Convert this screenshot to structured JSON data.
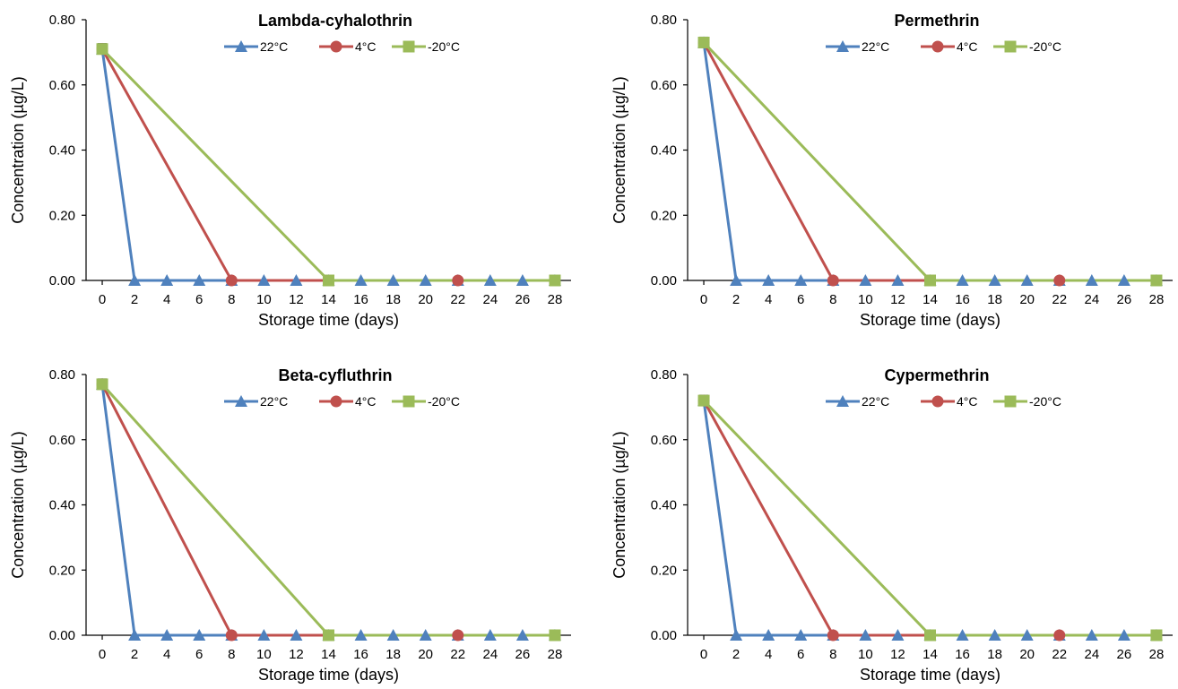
{
  "figure": {
    "background": "#ffffff"
  },
  "series_styles": [
    {
      "name": "22°C",
      "color": "#4f81bd",
      "marker": "triangle"
    },
    {
      "name": "4°C",
      "color": "#c0504d",
      "marker": "circle"
    },
    {
      "name": "-20°C",
      "color": "#9bbb59",
      "marker": "square"
    }
  ],
  "chart_data": [
    {
      "type": "line",
      "title": "Lambda-cyhalothrin",
      "xlabel": "Storage time (days)",
      "ylabel": "Concentration (µg/L)",
      "x_ticks": [
        0,
        2,
        4,
        6,
        8,
        10,
        12,
        14,
        16,
        18,
        20,
        22,
        24,
        26,
        28
      ],
      "y_ticks": [
        "0.00",
        "0.20",
        "0.40",
        "0.60",
        "0.80"
      ],
      "xlim": [
        -1,
        29
      ],
      "ylim": [
        0,
        0.8
      ],
      "grid": false,
      "legend": "top",
      "series": [
        {
          "name": "22°C",
          "x": [
            0,
            2,
            4,
            6,
            8,
            10,
            12,
            14,
            16,
            18,
            20,
            22,
            24,
            26,
            28
          ],
          "y": [
            0.71,
            0,
            0,
            0,
            0,
            0,
            0,
            0,
            0,
            0,
            0,
            0,
            0,
            0,
            0
          ]
        },
        {
          "name": "4°C",
          "x": [
            0,
            8,
            22
          ],
          "y": [
            0.71,
            0,
            0
          ]
        },
        {
          "name": "-20°C",
          "x": [
            0,
            14,
            28
          ],
          "y": [
            0.71,
            0,
            0
          ]
        }
      ]
    },
    {
      "type": "line",
      "title": "Permethrin",
      "xlabel": "Storage time (days)",
      "ylabel": "Concentration (µg/L)",
      "x_ticks": [
        0,
        2,
        4,
        6,
        8,
        10,
        12,
        14,
        16,
        18,
        20,
        22,
        24,
        26,
        28
      ],
      "y_ticks": [
        "0.00",
        "0.20",
        "0.40",
        "0.60",
        "0.80"
      ],
      "xlim": [
        -1,
        29
      ],
      "ylim": [
        0,
        0.8
      ],
      "grid": false,
      "legend": "top",
      "series": [
        {
          "name": "22°C",
          "x": [
            0,
            2,
            4,
            6,
            8,
            10,
            12,
            14,
            16,
            18,
            20,
            22,
            24,
            26,
            28
          ],
          "y": [
            0.73,
            0,
            0,
            0,
            0,
            0,
            0,
            0,
            0,
            0,
            0,
            0,
            0,
            0,
            0
          ]
        },
        {
          "name": "4°C",
          "x": [
            0,
            8,
            22
          ],
          "y": [
            0.73,
            0,
            0
          ]
        },
        {
          "name": "-20°C",
          "x": [
            0,
            14,
            28
          ],
          "y": [
            0.73,
            0,
            0
          ]
        }
      ]
    },
    {
      "type": "line",
      "title": "Beta-cyfluthrin",
      "xlabel": "Storage time (days)",
      "ylabel": "Concentration (µg/L)",
      "x_ticks": [
        0,
        2,
        4,
        6,
        8,
        10,
        12,
        14,
        16,
        18,
        20,
        22,
        24,
        26,
        28
      ],
      "y_ticks": [
        "0.00",
        "0.20",
        "0.40",
        "0.60",
        "0.80"
      ],
      "xlim": [
        -1,
        29
      ],
      "ylim": [
        0,
        0.8
      ],
      "grid": false,
      "legend": "top",
      "series": [
        {
          "name": "22°C",
          "x": [
            0,
            2,
            4,
            6,
            8,
            10,
            12,
            14,
            16,
            18,
            20,
            22,
            24,
            26,
            28
          ],
          "y": [
            0.77,
            0,
            0,
            0,
            0,
            0,
            0,
            0,
            0,
            0,
            0,
            0,
            0,
            0,
            0
          ]
        },
        {
          "name": "4°C",
          "x": [
            0,
            8,
            22
          ],
          "y": [
            0.77,
            0,
            0
          ]
        },
        {
          "name": "-20°C",
          "x": [
            0,
            14,
            28
          ],
          "y": [
            0.77,
            0,
            0
          ]
        }
      ]
    },
    {
      "type": "line",
      "title": "Cypermethrin",
      "xlabel": "Storage time (days)",
      "ylabel": "Concentration (µg/L)",
      "x_ticks": [
        0,
        2,
        4,
        6,
        8,
        10,
        12,
        14,
        16,
        18,
        20,
        22,
        24,
        26,
        28
      ],
      "y_ticks": [
        "0.00",
        "0.20",
        "0.40",
        "0.60",
        "0.80"
      ],
      "xlim": [
        -1,
        29
      ],
      "ylim": [
        0,
        0.8
      ],
      "grid": false,
      "legend": "top",
      "series": [
        {
          "name": "22°C",
          "x": [
            0,
            2,
            4,
            6,
            8,
            10,
            12,
            14,
            16,
            18,
            20,
            22,
            24,
            26,
            28
          ],
          "y": [
            0.72,
            0,
            0,
            0,
            0,
            0,
            0,
            0,
            0,
            0,
            0,
            0,
            0,
            0,
            0
          ]
        },
        {
          "name": "4°C",
          "x": [
            0,
            8,
            22
          ],
          "y": [
            0.72,
            0,
            0
          ]
        },
        {
          "name": "-20°C",
          "x": [
            0,
            14,
            28
          ],
          "y": [
            0.72,
            0,
            0
          ]
        }
      ]
    }
  ]
}
